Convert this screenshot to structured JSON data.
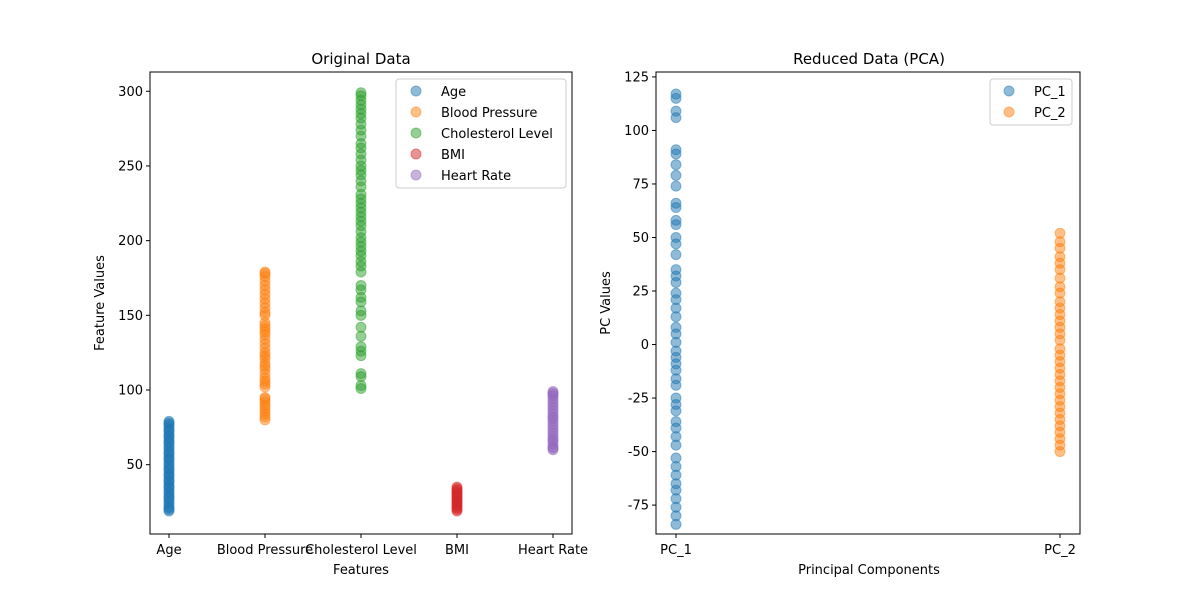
{
  "colors": {
    "blue": "#1f77b4",
    "orange": "#ff7f0e",
    "green": "#2ca02c",
    "red": "#d62728",
    "purple": "#9467bd"
  },
  "chart_data": [
    {
      "type": "scatter",
      "title": "Original Data",
      "xlabel": "Features",
      "ylabel": "Feature Values",
      "categories": [
        "Age",
        "Blood Pressure",
        "Cholesterol Level",
        "BMI",
        "Heart Rate"
      ],
      "ylim": [
        3.6,
        312.9
      ],
      "yticks": [
        50,
        100,
        150,
        200,
        250,
        300
      ],
      "legend": "top-right",
      "grid": false,
      "marker_alpha": 0.5,
      "series": [
        {
          "name": "Age",
          "color": "#1f77b4",
          "category": "Age",
          "values": [
            19,
            20,
            21,
            22,
            24,
            25,
            27,
            28,
            29,
            31,
            32,
            34,
            35,
            36,
            38,
            39,
            40,
            42,
            43,
            44,
            46,
            47,
            48,
            50,
            51,
            53,
            54,
            55,
            57,
            58,
            59,
            61,
            62,
            64,
            65,
            66,
            68,
            69,
            70,
            72,
            73,
            74,
            76,
            77,
            78,
            79
          ]
        },
        {
          "name": "Blood Pressure",
          "color": "#ff7f0e",
          "category": "Blood Pressure",
          "values": [
            80,
            82,
            84,
            86,
            88,
            90,
            92,
            94,
            95,
            102,
            104,
            106,
            108,
            111,
            114,
            116,
            118,
            121,
            123,
            125,
            128,
            131,
            134,
            137,
            139,
            141,
            143,
            145,
            150,
            152,
            155,
            158,
            161,
            164,
            167,
            170,
            173,
            176,
            178,
            179
          ]
        },
        {
          "name": "Cholesterol Level",
          "color": "#2ca02c",
          "category": "Cholesterol Level",
          "values": [
            101,
            103,
            109,
            111,
            123,
            126,
            129,
            136,
            142,
            150,
            153,
            159,
            162,
            167,
            170,
            179,
            183,
            186,
            190,
            193,
            196,
            199,
            202,
            206,
            210,
            213,
            216,
            219,
            222,
            225,
            228,
            231,
            236,
            240,
            244,
            247,
            250,
            254,
            258,
            262,
            265,
            270,
            274,
            278,
            282,
            285,
            288,
            291,
            294,
            297,
            299
          ]
        },
        {
          "name": "BMI",
          "color": "#d62728",
          "category": "BMI",
          "values": [
            19,
            20,
            21,
            22,
            23,
            24,
            25,
            26,
            27,
            28,
            29,
            30,
            31,
            32,
            33,
            34,
            35
          ]
        },
        {
          "name": "Heart Rate",
          "color": "#9467bd",
          "category": "Heart Rate",
          "values": [
            60,
            61,
            62,
            64,
            66,
            67,
            69,
            71,
            73,
            75,
            77,
            79,
            81,
            82,
            84,
            86,
            88,
            90,
            92,
            94,
            96,
            97,
            98,
            99
          ]
        }
      ]
    },
    {
      "type": "scatter",
      "title": "Reduced Data (PCA)",
      "xlabel": "Principal Components",
      "ylabel": "PC Values",
      "categories": [
        "PC_1",
        "PC_2"
      ],
      "ylim": [
        -88.5,
        127.3
      ],
      "yticks": [
        -75,
        -50,
        -25,
        0,
        25,
        50,
        75,
        100,
        125
      ],
      "legend": "top-right",
      "grid": false,
      "marker_alpha": 0.5,
      "series": [
        {
          "name": "PC_1",
          "color": "#1f77b4",
          "category": "PC_1",
          "values": [
            117,
            115,
            109,
            106,
            91,
            89,
            84,
            79,
            74,
            66,
            64,
            58,
            56,
            50,
            47,
            42,
            35,
            32,
            29,
            24,
            21,
            17,
            13,
            8,
            5,
            1,
            -3,
            -6,
            -9,
            -12,
            -16,
            -19,
            -25,
            -28,
            -31,
            -36,
            -39,
            -43,
            -47,
            -53,
            -57,
            -61,
            -65,
            -68,
            -72,
            -76,
            -80,
            -84
          ]
        },
        {
          "name": "PC_2",
          "color": "#ff7f0e",
          "category": "PC_2",
          "values": [
            52,
            48,
            45,
            41,
            38,
            35,
            31,
            27,
            24,
            20,
            17,
            14,
            11,
            8,
            5,
            2,
            -2,
            -5,
            -8,
            -11,
            -14,
            -17,
            -20,
            -23,
            -26,
            -29,
            -32,
            -35,
            -38,
            -41,
            -44,
            -47,
            -50
          ]
        }
      ]
    }
  ]
}
